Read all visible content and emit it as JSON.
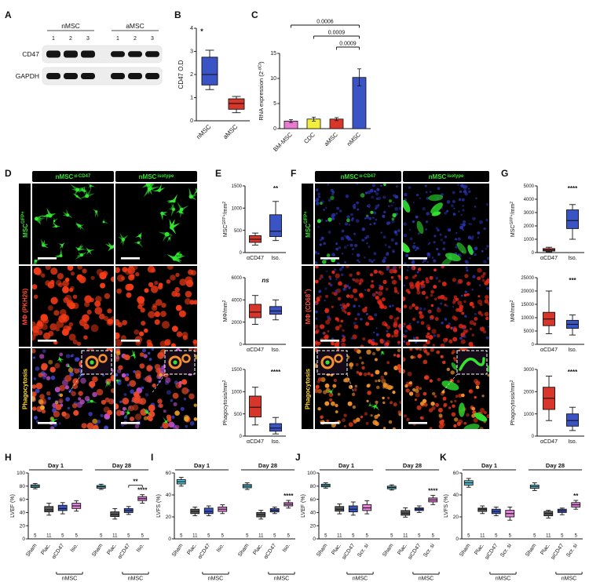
{
  "figure": {
    "panel_labels": {
      "A": "A",
      "B": "B",
      "C": "C",
      "D": "D",
      "E": "E",
      "F": "F",
      "G": "G",
      "H": "H",
      "I": "I",
      "J": "J",
      "K": "K"
    }
  },
  "colors": {
    "gfp_green": "#35e02f",
    "pkh_red": "#ff4b33",
    "phago_yellow": "#ffd91f",
    "box_blue": "#3a53c5",
    "box_red": "#d8352b",
    "sham_cyan": "#53c8da",
    "plac_gray": "#5b5b5b",
    "iso_magenta": "#e583dc",
    "bar_pink": "#e87ad0",
    "bar_yellow": "#f2ee3c"
  },
  "panelA": {
    "groups": [
      "nMSC",
      "aMSC"
    ],
    "lanes": [
      "1",
      "2",
      "3",
      "1",
      "2",
      "3"
    ],
    "bands": [
      "CD47",
      "GAPDH"
    ]
  },
  "panelB": {
    "chart": {
      "type": "box",
      "ylabel": [
        {
          "t": "CD47 O.D"
        }
      ],
      "ylim": [
        0,
        4
      ],
      "yticks": [
        0,
        1,
        2,
        3,
        4
      ],
      "items": [
        {
          "label": "nMSC",
          "color": "#3a53c5",
          "lo": 1.35,
          "q1": 1.55,
          "med": 2.0,
          "q3": 2.75,
          "hi": 3.05
        },
        {
          "label": "aMSC",
          "color": "#d8352b",
          "lo": 0.35,
          "q1": 0.5,
          "med": 0.75,
          "q3": 0.95,
          "hi": 1.05
        }
      ],
      "sig": [
        {
          "pos": "topleft",
          "text": "*"
        }
      ]
    }
  },
  "panelC": {
    "chart": {
      "type": "bar",
      "ylabel": [
        {
          "t": "RNA expression (2"
        },
        {
          "t": "-dCt",
          "sup": true
        },
        {
          "t": ")"
        }
      ],
      "ylim": [
        0,
        15
      ],
      "yticks": [
        0,
        5,
        10,
        15
      ],
      "items": [
        {
          "label": "BM-MSC",
          "color": "#e87ad0",
          "value": 1.5,
          "err": 0.3
        },
        {
          "label": "CDC",
          "color": "#f2ee3c",
          "value": 1.9,
          "err": 0.4
        },
        {
          "label": "aMSC",
          "color": "#d8352b",
          "value": 1.9,
          "err": 0.3
        },
        {
          "label": "nMSC",
          "color": "#3a53c5",
          "value": 10.2,
          "err": 1.7
        }
      ],
      "brackets": [
        {
          "i1": 0,
          "i2": 3,
          "label": "0.0006",
          "lvl": 2
        },
        {
          "i1": 1,
          "i2": 3,
          "label": "0.0009",
          "lvl": 1
        },
        {
          "i1": 2,
          "i2": 3,
          "label": "0.0009",
          "lvl": 0
        }
      ]
    }
  },
  "panelD": {
    "col_headers": [
      [
        {
          "t": "nMSC"
        },
        {
          "t": "α-CD47",
          "sup": true
        }
      ],
      [
        {
          "t": "nMSC"
        },
        {
          "t": "isotype",
          "sup": true
        }
      ]
    ],
    "row_labels": [
      {
        "segs": [
          {
            "t": "MSC"
          },
          {
            "t": "GFP+",
            "sup": true
          }
        ],
        "color": "#35e02f"
      },
      {
        "segs": [
          {
            "t": "MΦ (PKH26)"
          }
        ],
        "color": "#ff4b33"
      },
      {
        "segs": [
          {
            "t": "Phagocytosis"
          }
        ],
        "color": "#ffd91f"
      }
    ]
  },
  "panelE": {
    "charts": [
      {
        "type": "box",
        "ylabel": [
          {
            "t": "MSC"
          },
          {
            "t": "GFP+",
            "sup": true
          },
          {
            "t": "/mm"
          },
          {
            "t": "2",
            "sup": true
          }
        ],
        "ylim": [
          0,
          1500
        ],
        "yticks": [
          0,
          500,
          1000,
          1500
        ],
        "items": [
          {
            "label": "αCD47",
            "color": "#d8352b",
            "lo": 170,
            "q1": 230,
            "med": 300,
            "q3": 380,
            "hi": 440
          },
          {
            "label": "Iso.",
            "color": "#3a53c5",
            "lo": 270,
            "q1": 360,
            "med": 480,
            "q3": 850,
            "hi": 1150
          }
        ],
        "sig": [
          {
            "i": 1,
            "top": true,
            "text": "**"
          }
        ]
      },
      {
        "type": "box",
        "ylabel": [
          {
            "t": "MΦ/mm"
          },
          {
            "t": "2",
            "sup": true
          }
        ],
        "ylim": [
          0,
          6000
        ],
        "yticks": [
          0,
          2000,
          4000,
          6000
        ],
        "items": [
          {
            "label": "αCD47",
            "color": "#d8352b",
            "lo": 1800,
            "q1": 2400,
            "med": 2900,
            "q3": 3600,
            "hi": 4400
          },
          {
            "label": "Iso.",
            "color": "#3a53c5",
            "lo": 2200,
            "q1": 2700,
            "med": 3000,
            "q3": 3400,
            "hi": 4000
          }
        ],
        "sig": [
          {
            "center": true,
            "top": true,
            "italic": true,
            "text": "ns"
          }
        ]
      },
      {
        "type": "box",
        "ylabel": [
          {
            "t": "Phagocytosis/mm"
          },
          {
            "t": "2",
            "sup": true
          }
        ],
        "ylim": [
          0,
          1500
        ],
        "yticks": [
          0,
          500,
          1000,
          1500
        ],
        "items": [
          {
            "label": "αCD47",
            "color": "#d8352b",
            "lo": 250,
            "q1": 430,
            "med": 650,
            "q3": 900,
            "hi": 1100
          },
          {
            "label": "Iso.",
            "color": "#3a53c5",
            "lo": 50,
            "q1": 110,
            "med": 180,
            "q3": 280,
            "hi": 420
          }
        ],
        "sig": [
          {
            "i": 1,
            "top": true,
            "text": "****"
          }
        ]
      }
    ]
  },
  "panelF": {
    "col_headers": [
      [
        {
          "t": "nMSC"
        },
        {
          "t": "α-CD47",
          "sup": true
        }
      ],
      [
        {
          "t": "nMSC"
        },
        {
          "t": "isotype",
          "sup": true
        }
      ]
    ],
    "row_labels": [
      {
        "segs": [
          {
            "t": "MSC"
          },
          {
            "t": "GFP+",
            "sup": true
          }
        ],
        "color": "#35e02f"
      },
      {
        "segs": [
          {
            "t": "MΦ (CD68"
          },
          {
            "t": "+",
            "sup": true
          },
          {
            "t": ")"
          }
        ],
        "color": "#ff4b33"
      },
      {
        "segs": [
          {
            "t": "Phagocytosis"
          }
        ],
        "color": "#ffd91f"
      }
    ]
  },
  "panelG": {
    "charts": [
      {
        "type": "box",
        "ylabel": [
          {
            "t": "MSC"
          },
          {
            "t": "GFP+",
            "sup": true
          },
          {
            "t": "/mm"
          },
          {
            "t": "2",
            "sup": true
          }
        ],
        "ylim": [
          0,
          5000
        ],
        "yticks": [
          0,
          1000,
          2000,
          3000,
          4000,
          5000
        ],
        "items": [
          {
            "label": "αCD47",
            "color": "#d8352b",
            "lo": 60,
            "q1": 120,
            "med": 200,
            "q3": 300,
            "hi": 400
          },
          {
            "label": "Iso.",
            "color": "#3a53c5",
            "lo": 1000,
            "q1": 1800,
            "med": 2400,
            "q3": 3200,
            "hi": 3600
          }
        ],
        "sig": [
          {
            "i": 1,
            "top": true,
            "text": "****"
          }
        ]
      },
      {
        "type": "box",
        "ylabel": [
          {
            "t": "MΦ/mm"
          },
          {
            "t": "2",
            "sup": true
          }
        ],
        "ylim": [
          0,
          25000
        ],
        "yticks": [
          0,
          5000,
          10000,
          15000,
          20000,
          25000
        ],
        "items": [
          {
            "label": "αCD47",
            "color": "#d8352b",
            "lo": 4000,
            "q1": 7000,
            "med": 9500,
            "q3": 12000,
            "hi": 20000
          },
          {
            "label": "Iso.",
            "color": "#3a53c5",
            "lo": 3500,
            "q1": 6000,
            "med": 7500,
            "q3": 9000,
            "hi": 11000
          }
        ],
        "sig": [
          {
            "i": 1,
            "top": true,
            "text": "***"
          }
        ]
      },
      {
        "type": "box",
        "ylabel": [
          {
            "t": "Phagocytosis/mm"
          },
          {
            "t": "2",
            "sup": true
          }
        ],
        "ylim": [
          0,
          3000
        ],
        "yticks": [
          0,
          1000,
          2000,
          3000
        ],
        "items": [
          {
            "label": "αCD47",
            "color": "#d8352b",
            "lo": 700,
            "q1": 1200,
            "med": 1700,
            "q3": 2200,
            "hi": 2700
          },
          {
            "label": "Iso.",
            "color": "#3a53c5",
            "lo": 250,
            "q1": 450,
            "med": 700,
            "q3": 1000,
            "hi": 1300
          }
        ],
        "sig": [
          {
            "i": 1,
            "top": true,
            "text": "****"
          }
        ]
      }
    ]
  },
  "panelH": {
    "chart": {
      "type": "box",
      "ylabel": [
        {
          "t": "LVEF (%)"
        }
      ],
      "ylim": [
        0,
        100
      ],
      "yticks": [
        0,
        20,
        40,
        60,
        80,
        100
      ],
      "gapAfter": 3,
      "groupGap": 0.8,
      "daybands": [
        {
          "label": "Day 1",
          "i1": 0,
          "i2": 3
        },
        {
          "label": "Day 28",
          "i1": 4,
          "i2": 7
        }
      ],
      "counts": [
        "5",
        "11",
        "5",
        "5",
        "5",
        "11",
        "5",
        "5"
      ],
      "subgroups": [
        {
          "label": "nMSC",
          "i1": 2,
          "i2": 3
        },
        {
          "label": "nMSC",
          "i1": 6,
          "i2": 7
        }
      ],
      "sig": [
        {
          "i1": 6,
          "i2": 7,
          "text": "**"
        },
        {
          "i": 7,
          "text": "****"
        }
      ],
      "items": [
        {
          "label": "Sham",
          "color": "#53c8da",
          "lo": 76,
          "q1": 78,
          "med": 80,
          "q3": 82,
          "hi": 84
        },
        {
          "label": "Plac.",
          "color": "#5b5b5b",
          "lo": 36,
          "q1": 41,
          "med": 44,
          "q3": 49,
          "hi": 54
        },
        {
          "label": "αCD47",
          "color": "#3a53c5",
          "lo": 38,
          "q1": 43,
          "med": 46,
          "q3": 51,
          "hi": 55
        },
        {
          "label": "Iso.",
          "color": "#e583dc",
          "lo": 42,
          "q1": 46,
          "med": 50,
          "q3": 54,
          "hi": 58
        },
        {
          "label": "Sham",
          "color": "#53c8da",
          "lo": 75,
          "q1": 77,
          "med": 79,
          "q3": 81,
          "hi": 83
        },
        {
          "label": "Plac.",
          "color": "#5b5b5b",
          "lo": 30,
          "q1": 34,
          "med": 37,
          "q3": 41,
          "hi": 46
        },
        {
          "label": "αCD47",
          "color": "#3a53c5",
          "lo": 37,
          "q1": 40,
          "med": 43,
          "q3": 46,
          "hi": 49
        },
        {
          "label": "Iso.",
          "color": "#e583dc",
          "lo": 54,
          "q1": 58,
          "med": 61,
          "q3": 64,
          "hi": 67
        }
      ]
    }
  },
  "panelI": {
    "chart": {
      "type": "box",
      "ylabel": [
        {
          "t": "LVFS (%)"
        }
      ],
      "ylim": [
        0,
        60
      ],
      "yticks": [
        0,
        20,
        40,
        60
      ],
      "gapAfter": 3,
      "groupGap": 0.8,
      "daybands": [
        {
          "label": "Day 1",
          "i1": 0,
          "i2": 3
        },
        {
          "label": "Day 28",
          "i1": 4,
          "i2": 7
        }
      ],
      "counts": [
        "5",
        "11",
        "5",
        "5",
        "5",
        "11",
        "5",
        "5"
      ],
      "subgroups": [
        {
          "label": "nMSC",
          "i1": 2,
          "i2": 3
        },
        {
          "label": "nMSC",
          "i1": 6,
          "i2": 7
        }
      ],
      "sig": [
        {
          "i": 7,
          "text": "****"
        }
      ],
      "items": [
        {
          "label": "Sham",
          "color": "#53c8da",
          "lo": 48,
          "q1": 50,
          "med": 52,
          "q3": 54,
          "hi": 56
        },
        {
          "label": "Plac.",
          "color": "#5b5b5b",
          "lo": 21,
          "q1": 23,
          "med": 25,
          "q3": 27,
          "hi": 29
        },
        {
          "label": "αCD47",
          "color": "#3a53c5",
          "lo": 21,
          "q1": 23,
          "med": 25,
          "q3": 28,
          "hi": 30
        },
        {
          "label": "Iso.",
          "color": "#e583dc",
          "lo": 23,
          "q1": 25,
          "med": 27,
          "q3": 29,
          "hi": 31
        },
        {
          "label": "Sham",
          "color": "#53c8da",
          "lo": 45,
          "q1": 46.5,
          "med": 48,
          "q3": 49.5,
          "hi": 51
        },
        {
          "label": "Plac.",
          "color": "#5b5b5b",
          "lo": 18,
          "q1": 20,
          "med": 22,
          "q3": 24,
          "hi": 26
        },
        {
          "label": "αCD47",
          "color": "#3a53c5",
          "lo": 23,
          "q1": 24.5,
          "med": 26,
          "q3": 27.5,
          "hi": 29
        },
        {
          "label": "Iso.",
          "color": "#e583dc",
          "lo": 28,
          "q1": 30,
          "med": 31.5,
          "q3": 33,
          "hi": 35
        }
      ]
    }
  },
  "panelJ": {
    "chart": {
      "type": "box",
      "ylabel": [
        {
          "t": "LVEF (%)"
        }
      ],
      "ylim": [
        0,
        100
      ],
      "yticks": [
        0,
        20,
        40,
        60,
        80,
        100
      ],
      "gapAfter": 3,
      "groupGap": 0.8,
      "daybands": [
        {
          "label": "Day 1",
          "i1": 0,
          "i2": 3
        },
        {
          "label": "Day 28",
          "i1": 4,
          "i2": 7
        }
      ],
      "counts": [
        "5",
        "11",
        "5",
        "5",
        "5",
        "11",
        "5",
        "5"
      ],
      "subgroups": [
        {
          "label": "nMSC",
          "i1": 2,
          "i2": 3
        },
        {
          "label": "nMSC",
          "i1": 6,
          "i2": 7
        }
      ],
      "sig": [
        {
          "i": 7,
          "text": "****"
        }
      ],
      "items": [
        {
          "label": "Sham",
          "color": "#53c8da",
          "lo": 77,
          "q1": 79,
          "med": 81,
          "q3": 83,
          "hi": 85
        },
        {
          "label": "Plac.",
          "color": "#5b5b5b",
          "lo": 38,
          "q1": 42,
          "med": 45,
          "q3": 49,
          "hi": 53
        },
        {
          "label": "siCD47",
          "color": "#3a53c5",
          "lo": 36,
          "q1": 41,
          "med": 45,
          "q3": 50,
          "hi": 56
        },
        {
          "label": "Scr. si",
          "color": "#e583dc",
          "lo": 38,
          "q1": 43,
          "med": 47,
          "q3": 52,
          "hi": 58
        },
        {
          "label": "Sham",
          "color": "#53c8da",
          "lo": 74,
          "q1": 76,
          "med": 78,
          "q3": 80,
          "hi": 82
        },
        {
          "label": "Plac.",
          "color": "#5b5b5b",
          "lo": 33,
          "q1": 36,
          "med": 39,
          "q3": 43,
          "hi": 47
        },
        {
          "label": "siCD47",
          "color": "#3a53c5",
          "lo": 40,
          "q1": 43,
          "med": 45,
          "q3": 47,
          "hi": 50
        },
        {
          "label": "Scr. si",
          "color": "#e583dc",
          "lo": 52,
          "q1": 56,
          "med": 59,
          "q3": 62,
          "hi": 66
        }
      ]
    }
  },
  "panelK": {
    "chart": {
      "type": "box",
      "ylabel": [
        {
          "t": "LVFS (%)"
        }
      ],
      "ylim": [
        0,
        60
      ],
      "yticks": [
        0,
        20,
        40,
        60
      ],
      "gapAfter": 3,
      "groupGap": 0.8,
      "daybands": [
        {
          "label": "Day 1",
          "i1": 0,
          "i2": 3
        },
        {
          "label": "Day 28",
          "i1": 4,
          "i2": 7
        }
      ],
      "counts": [
        "5",
        "11",
        "5",
        "5",
        "5",
        "11",
        "5",
        "5"
      ],
      "subgroups": [
        {
          "label": "nMSC",
          "i1": 2,
          "i2": 3
        },
        {
          "label": "nMSC",
          "i1": 6,
          "i2": 7
        }
      ],
      "sig": [
        {
          "i": 7,
          "text": "**"
        }
      ],
      "items": [
        {
          "label": "Sham",
          "color": "#53c8da",
          "lo": 47,
          "q1": 49,
          "med": 51,
          "q3": 53,
          "hi": 55
        },
        {
          "label": "Plac.",
          "color": "#5b5b5b",
          "lo": 23,
          "q1": 25,
          "med": 27,
          "q3": 28,
          "hi": 30
        },
        {
          "label": "siCD47",
          "color": "#3a53c5",
          "lo": 21,
          "q1": 23,
          "med": 25,
          "q3": 27,
          "hi": 29
        },
        {
          "label": "Scr. si",
          "color": "#e583dc",
          "lo": 17,
          "q1": 20,
          "med": 23,
          "q3": 26,
          "hi": 29
        },
        {
          "label": "Sham",
          "color": "#53c8da",
          "lo": 44,
          "q1": 46,
          "med": 47.5,
          "q3": 49,
          "hi": 51
        },
        {
          "label": "Plac.",
          "color": "#5b5b5b",
          "lo": 19,
          "q1": 21,
          "med": 23,
          "q3": 25,
          "hi": 26
        },
        {
          "label": "siCD47",
          "color": "#3a53c5",
          "lo": 22,
          "q1": 24,
          "med": 25.5,
          "q3": 27,
          "hi": 28
        },
        {
          "label": "Scr. si",
          "color": "#e583dc",
          "lo": 27,
          "q1": 29,
          "med": 31,
          "q3": 33,
          "hi": 35
        }
      ]
    }
  }
}
